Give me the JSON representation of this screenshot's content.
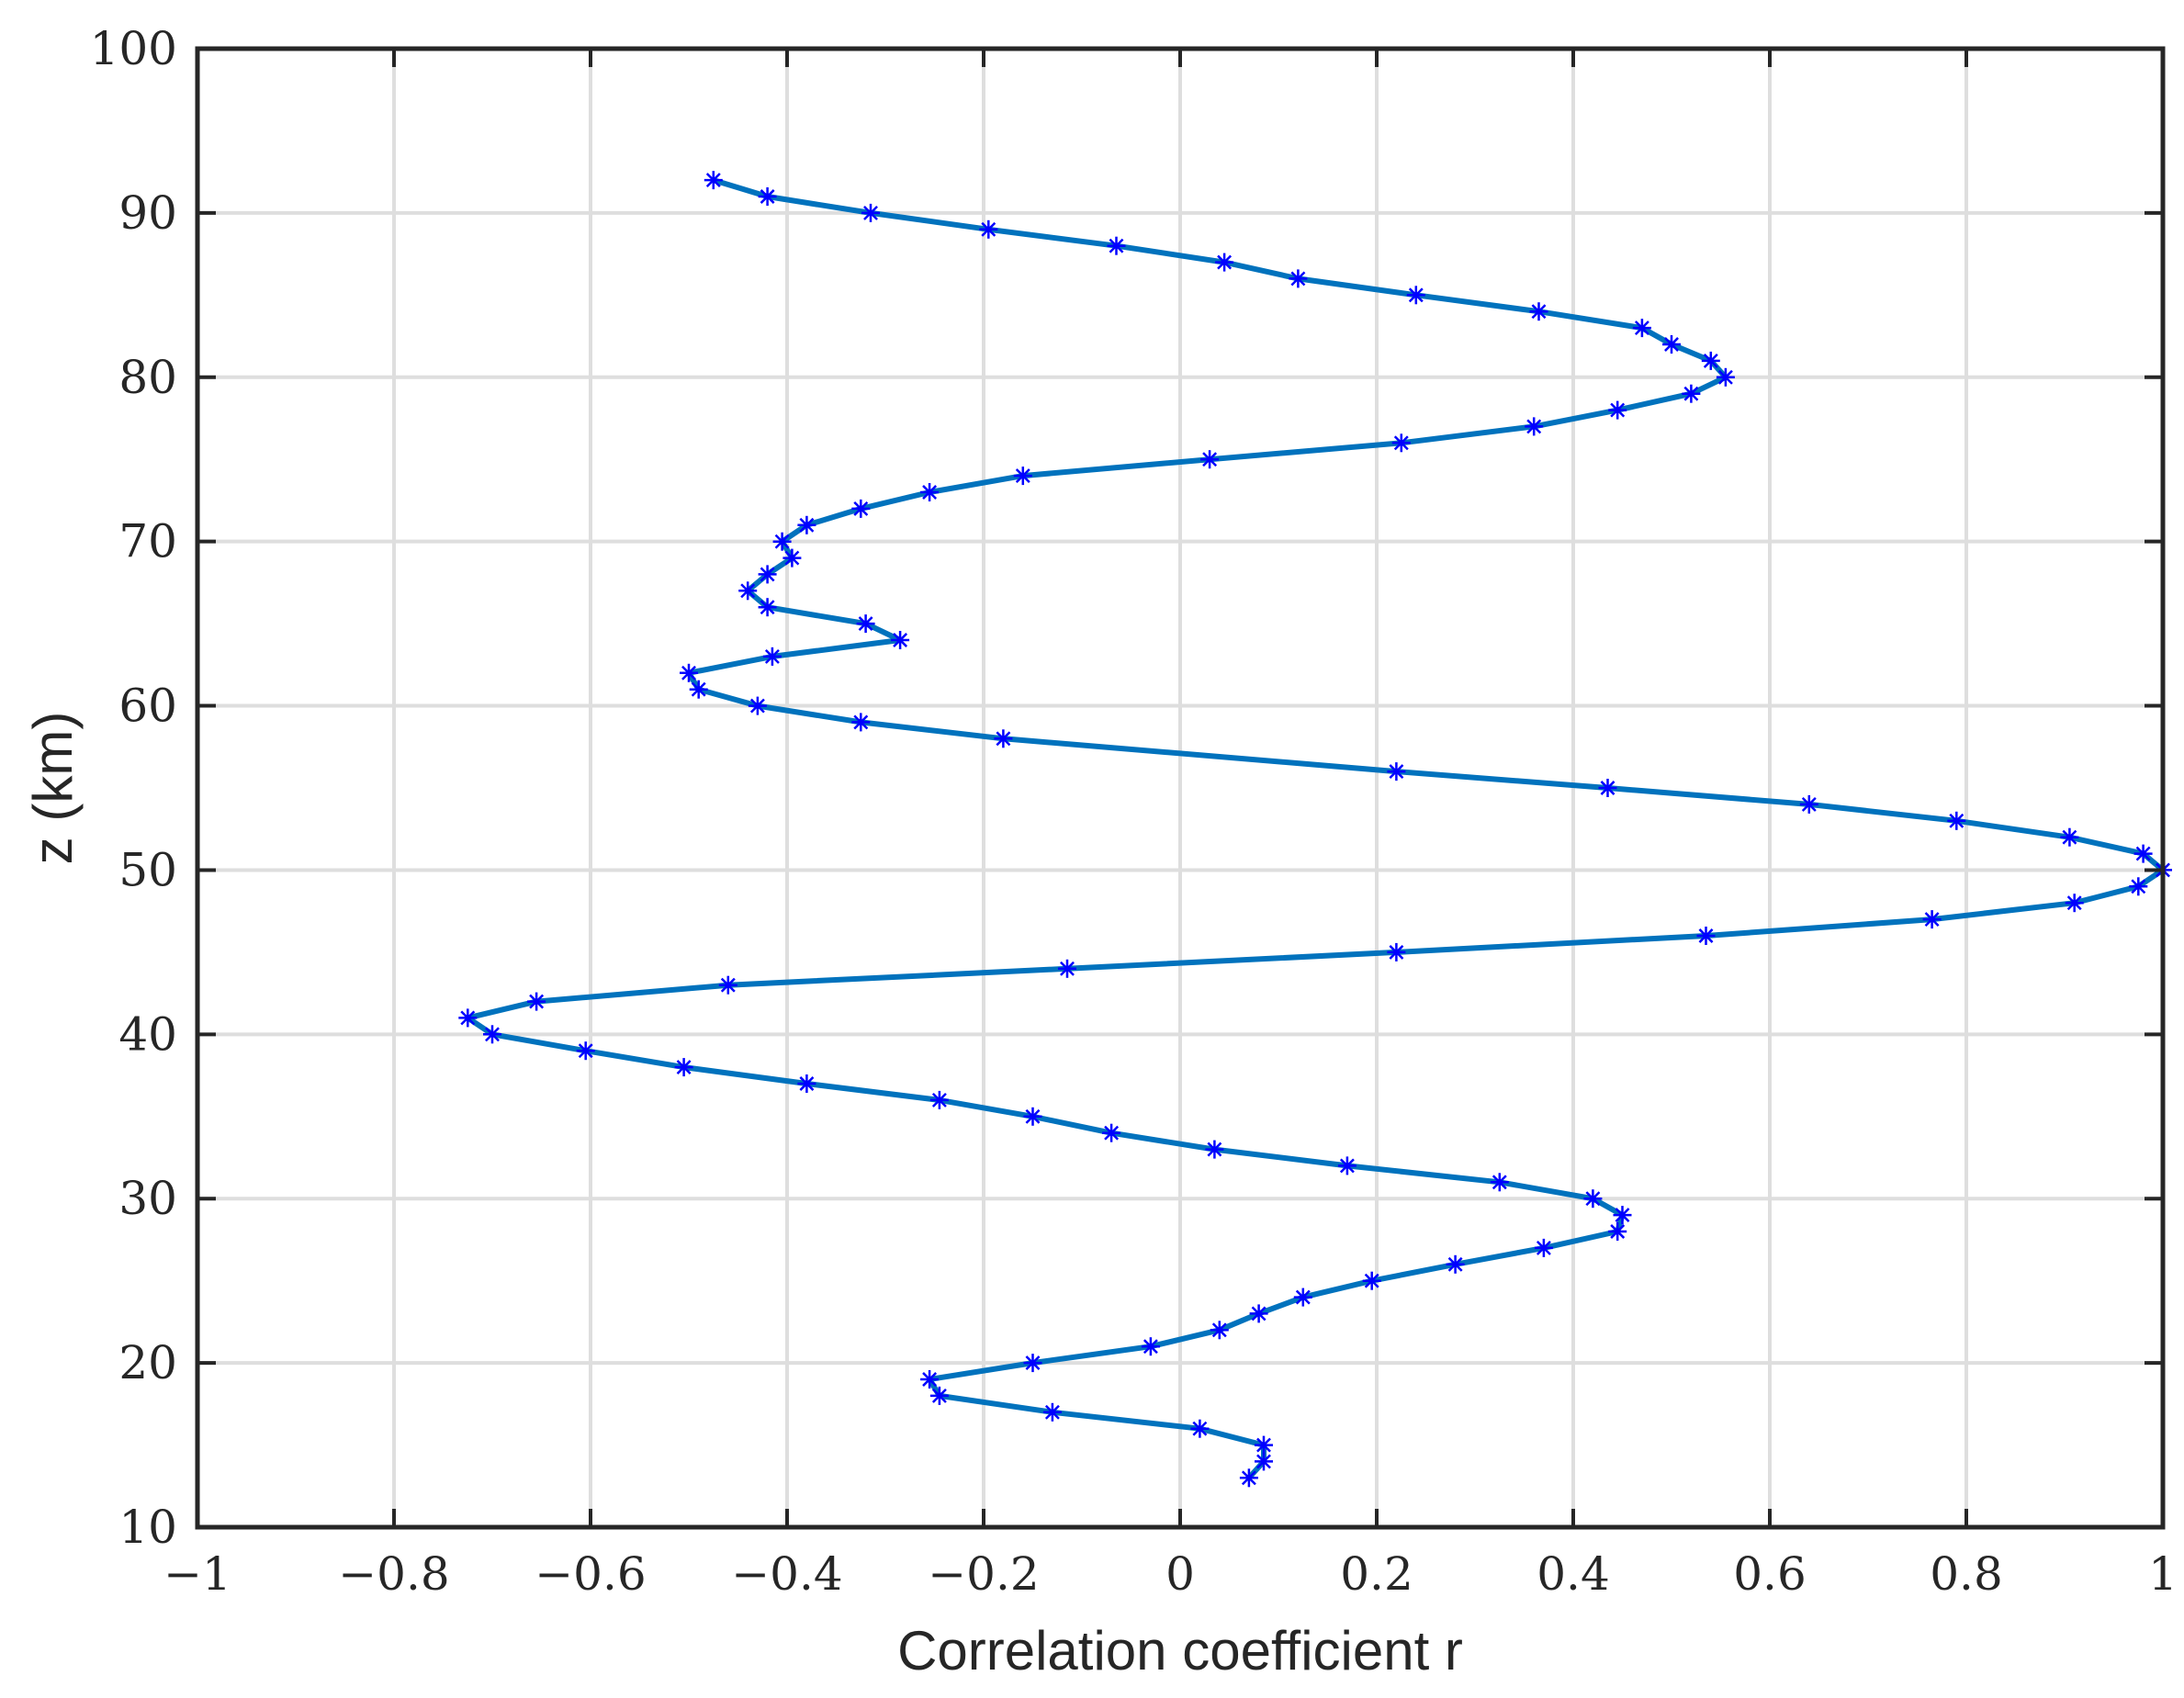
{
  "chart_data": {
    "type": "line",
    "xlabel": "Correlation coefficient r",
    "ylabel": "z (km)",
    "xlim": [
      -1,
      1
    ],
    "ylim": [
      10,
      100
    ],
    "x_ticks": [
      -1,
      -0.8,
      -0.6,
      -0.4,
      -0.2,
      0,
      0.2,
      0.4,
      0.6,
      0.8,
      1
    ],
    "x_tick_labels": [
      "−1",
      "−0.8",
      "−0.6",
      "−0.4",
      "−0.2",
      "0",
      "0.2",
      "0.4",
      "0.6",
      "0.8",
      "1"
    ],
    "y_ticks": [
      10,
      20,
      30,
      40,
      50,
      60,
      70,
      80,
      90,
      100
    ],
    "y_tick_labels": [
      "10",
      "20",
      "30",
      "40",
      "50",
      "60",
      "70",
      "80",
      "90",
      "100"
    ],
    "grid": true,
    "marker": "asterisk",
    "line_color": "#0072BD",
    "marker_color": "#0000FF",
    "series": [
      {
        "points": [
          {
            "z": 13,
            "r": 0.07
          },
          {
            "z": 14,
            "r": 0.085
          },
          {
            "z": 15,
            "r": 0.085
          },
          {
            "z": 16,
            "r": 0.02
          },
          {
            "z": 17,
            "r": -0.13
          },
          {
            "z": 18,
            "r": -0.245
          },
          {
            "z": 19,
            "r": -0.255
          },
          {
            "z": 20,
            "r": -0.15
          },
          {
            "z": 21,
            "r": -0.03
          },
          {
            "z": 22,
            "r": 0.04
          },
          {
            "z": 23,
            "r": 0.08
          },
          {
            "z": 24,
            "r": 0.125
          },
          {
            "z": 25,
            "r": 0.195
          },
          {
            "z": 26,
            "r": 0.28
          },
          {
            "z": 27,
            "r": 0.37
          },
          {
            "z": 28,
            "r": 0.445
          },
          {
            "z": 29,
            "r": 0.45
          },
          {
            "z": 30,
            "r": 0.42
          },
          {
            "z": 31,
            "r": 0.325
          },
          {
            "z": 32,
            "r": 0.17
          },
          {
            "z": 33,
            "r": 0.035
          },
          {
            "z": 34,
            "r": -0.07
          },
          {
            "z": 35,
            "r": -0.15
          },
          {
            "z": 36,
            "r": -0.245
          },
          {
            "z": 37,
            "r": -0.38
          },
          {
            "z": 38,
            "r": -0.505
          },
          {
            "z": 39,
            "r": -0.605
          },
          {
            "z": 40,
            "r": -0.7
          },
          {
            "z": 41,
            "r": -0.725
          },
          {
            "z": 42,
            "r": -0.655
          },
          {
            "z": 43,
            "r": -0.46
          },
          {
            "z": 44,
            "r": -0.115
          },
          {
            "z": 45,
            "r": 0.22
          },
          {
            "z": 46,
            "r": 0.535
          },
          {
            "z": 47,
            "r": 0.765
          },
          {
            "z": 48,
            "r": 0.91
          },
          {
            "z": 49,
            "r": 0.975
          },
          {
            "z": 50,
            "r": 1.0
          },
          {
            "z": 51,
            "r": 0.98
          },
          {
            "z": 52,
            "r": 0.905
          },
          {
            "z": 53,
            "r": 0.79
          },
          {
            "z": 54,
            "r": 0.64
          },
          {
            "z": 55,
            "r": 0.435
          },
          {
            "z": 56,
            "r": 0.22
          },
          {
            "z": 58,
            "r": -0.18
          },
          {
            "z": 59,
            "r": -0.325
          },
          {
            "z": 60,
            "r": -0.43
          },
          {
            "z": 61,
            "r": -0.49
          },
          {
            "z": 62,
            "r": -0.5
          },
          {
            "z": 63,
            "r": -0.415
          },
          {
            "z": 64,
            "r": -0.285
          },
          {
            "z": 65,
            "r": -0.32
          },
          {
            "z": 66,
            "r": -0.42
          },
          {
            "z": 67,
            "r": -0.44
          },
          {
            "z": 68,
            "r": -0.42
          },
          {
            "z": 69,
            "r": -0.395
          },
          {
            "z": 70,
            "r": -0.405
          },
          {
            "z": 71,
            "r": -0.38
          },
          {
            "z": 72,
            "r": -0.325
          },
          {
            "z": 73,
            "r": -0.255
          },
          {
            "z": 74,
            "r": -0.16
          },
          {
            "z": 75,
            "r": 0.03
          },
          {
            "z": 76,
            "r": 0.225
          },
          {
            "z": 77,
            "r": 0.36
          },
          {
            "z": 78,
            "r": 0.445
          },
          {
            "z": 79,
            "r": 0.52
          },
          {
            "z": 80,
            "r": 0.555
          },
          {
            "z": 81,
            "r": 0.54
          },
          {
            "z": 82,
            "r": 0.5
          },
          {
            "z": 83,
            "r": 0.47
          },
          {
            "z": 84,
            "r": 0.365
          },
          {
            "z": 85,
            "r": 0.24
          },
          {
            "z": 86,
            "r": 0.12
          },
          {
            "z": 87,
            "r": 0.045
          },
          {
            "z": 88,
            "r": -0.065
          },
          {
            "z": 89,
            "r": -0.195
          },
          {
            "z": 90,
            "r": -0.315
          },
          {
            "z": 91,
            "r": -0.42
          },
          {
            "z": 92,
            "r": -0.475
          }
        ]
      }
    ]
  }
}
